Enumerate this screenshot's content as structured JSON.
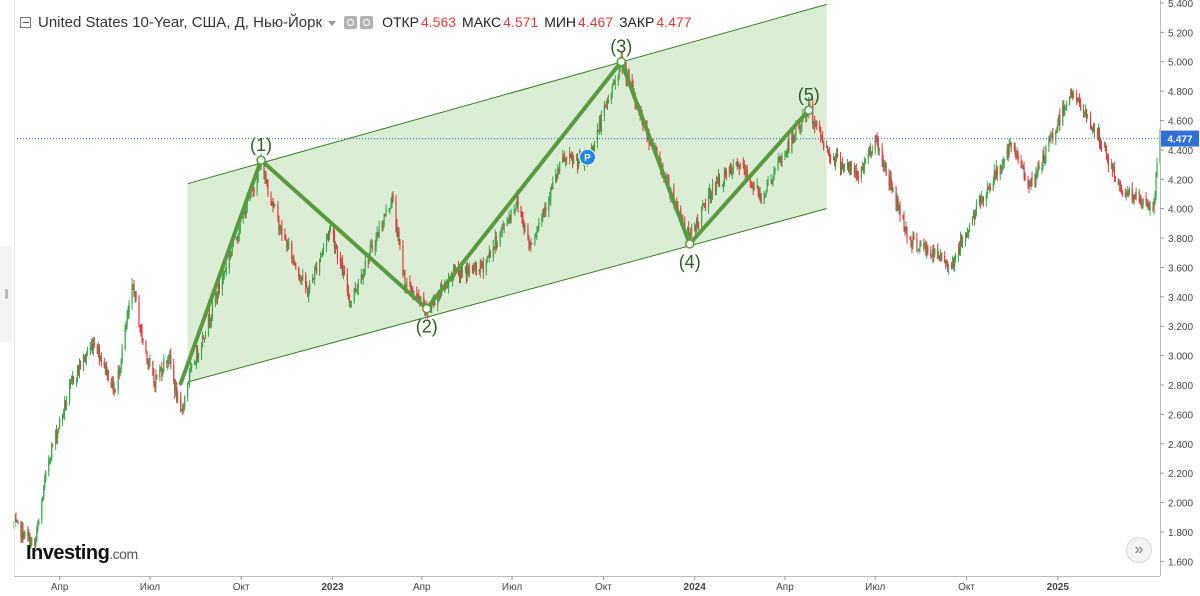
{
  "header": {
    "instrument": "United States 10-Year, США, Д, Нью-Йорк",
    "open_label": "ОТКР",
    "open_value": "4.563",
    "high_label": "МАКС",
    "high_value": "4.571",
    "low_label": "МИН",
    "low_value": "4.467",
    "close_label": "ЗАКР",
    "close_value": "4.477"
  },
  "branding": {
    "logo_main": "Investing",
    "logo_suffix": ".com"
  },
  "controls": {
    "scroll_label": "»"
  },
  "colors": {
    "up": "#3aa64a",
    "down": "#e03a3e",
    "channel_fill": "#d7ebd0",
    "channel_stroke": "#3d7a2c",
    "wave": "#5a9a3e",
    "price_tag": "#2f6fd6",
    "marker": "#1e88e5"
  },
  "chart_data": {
    "type": "candlestick",
    "title": "United States 10-Year",
    "timeframe": "Д",
    "y_axis": {
      "range": [
        1.5,
        5.42
      ],
      "ticks": [
        1.6,
        1.8,
        2.0,
        2.2,
        2.4,
        2.6,
        2.8,
        3.0,
        3.2,
        3.4,
        3.6,
        3.8,
        4.0,
        4.2,
        4.4,
        4.6,
        4.8,
        5.0,
        5.2,
        5.4
      ],
      "tick_labels": [
        "1.600",
        "1.800",
        "2.000",
        "2.200",
        "2.400",
        "2.600",
        "2.800",
        "3.000",
        "3.200",
        "3.400",
        "3.600",
        "3.800",
        "4.000",
        "4.200",
        "4.400",
        "4.600",
        "4.800",
        "5.000",
        "5.200",
        "5.400"
      ]
    },
    "x_axis": {
      "range": [
        "2022-02-14",
        "2025-04-14"
      ],
      "ticks": [
        {
          "label": "Апр",
          "date": "2022-04-01"
        },
        {
          "label": "Июл",
          "date": "2022-07-01"
        },
        {
          "label": "Окт",
          "date": "2022-10-01"
        },
        {
          "label": "2023",
          "date": "2023-01-01",
          "bold": true
        },
        {
          "label": "Апр",
          "date": "2023-04-01"
        },
        {
          "label": "Июл",
          "date": "2023-07-01"
        },
        {
          "label": "Окт",
          "date": "2023-10-01"
        },
        {
          "label": "2024",
          "date": "2024-01-01",
          "bold": true
        },
        {
          "label": "Апр",
          "date": "2024-04-01"
        },
        {
          "label": "Июл",
          "date": "2024-07-01"
        },
        {
          "label": "Окт",
          "date": "2024-10-01"
        },
        {
          "label": "2025",
          "date": "2025-01-01",
          "bold": true
        }
      ]
    },
    "price_line": {
      "value": 4.477,
      "label": "4.477"
    },
    "channel": {
      "upper": [
        {
          "date": "2022-08-08",
          "value": 4.17
        },
        {
          "date": "2024-05-13",
          "value": 5.39
        }
      ],
      "lower": [
        {
          "date": "2022-08-08",
          "value": 2.82
        },
        {
          "date": "2024-05-13",
          "value": 4.0
        }
      ]
    },
    "waves": [
      {
        "label": "(1)",
        "date": "2022-10-21",
        "value": 4.33,
        "label_pos": "above"
      },
      {
        "label": "(2)",
        "date": "2023-04-06",
        "value": 3.32,
        "label_pos": "below"
      },
      {
        "label": "(3)",
        "date": "2023-10-19",
        "value": 5.0,
        "label_pos": "above"
      },
      {
        "label": "(4)",
        "date": "2023-12-27",
        "value": 3.76,
        "label_pos": "below"
      },
      {
        "label": "(5)",
        "date": "2024-04-25",
        "value": 4.67,
        "label_pos": "above"
      }
    ],
    "wave_start": {
      "date": "2022-08-01",
      "value": 2.81
    },
    "marker": {
      "date": "2023-09-15",
      "value": 4.35,
      "label": "P"
    },
    "trend": [
      [
        "2022-02-14",
        1.85
      ],
      [
        "2022-03-01",
        1.75
      ],
      [
        "2022-03-07",
        1.7
      ],
      [
        "2022-03-21",
        2.3
      ],
      [
        "2022-04-15",
        2.85
      ],
      [
        "2022-05-06",
        3.1
      ],
      [
        "2022-05-27",
        2.75
      ],
      [
        "2022-06-14",
        3.48
      ],
      [
        "2022-06-22",
        3.15
      ],
      [
        "2022-07-05",
        2.82
      ],
      [
        "2022-07-20",
        3.0
      ],
      [
        "2022-08-01",
        2.58
      ],
      [
        "2022-08-08",
        2.82
      ],
      [
        "2022-09-01",
        3.3
      ],
      [
        "2022-09-20",
        3.7
      ],
      [
        "2022-10-21",
        4.3
      ],
      [
        "2022-11-10",
        3.85
      ],
      [
        "2022-12-07",
        3.43
      ],
      [
        "2022-12-30",
        3.88
      ],
      [
        "2023-01-19",
        3.37
      ],
      [
        "2023-03-02",
        4.07
      ],
      [
        "2023-03-15",
        3.5
      ],
      [
        "2023-04-06",
        3.3
      ],
      [
        "2023-05-01",
        3.55
      ],
      [
        "2023-06-01",
        3.6
      ],
      [
        "2023-07-06",
        4.05
      ],
      [
        "2023-07-19",
        3.75
      ],
      [
        "2023-08-21",
        4.33
      ],
      [
        "2023-09-15",
        4.32
      ],
      [
        "2023-10-19",
        5.0
      ],
      [
        "2023-11-15",
        4.5
      ],
      [
        "2023-12-27",
        3.8
      ],
      [
        "2024-01-20",
        4.15
      ],
      [
        "2024-02-15",
        4.3
      ],
      [
        "2024-03-08",
        4.08
      ],
      [
        "2024-04-25",
        4.68
      ],
      [
        "2024-05-15",
        4.38
      ],
      [
        "2024-06-14",
        4.22
      ],
      [
        "2024-07-01",
        4.48
      ],
      [
        "2024-08-05",
        3.78
      ],
      [
        "2024-09-16",
        3.62
      ],
      [
        "2024-10-15",
        4.05
      ],
      [
        "2024-11-15",
        4.42
      ],
      [
        "2024-12-06",
        4.15
      ],
      [
        "2025-01-14",
        4.8
      ],
      [
        "2025-02-10",
        4.5
      ],
      [
        "2025-03-04",
        4.15
      ],
      [
        "2025-04-07",
        3.99
      ],
      [
        "2025-04-14",
        4.48
      ]
    ]
  }
}
